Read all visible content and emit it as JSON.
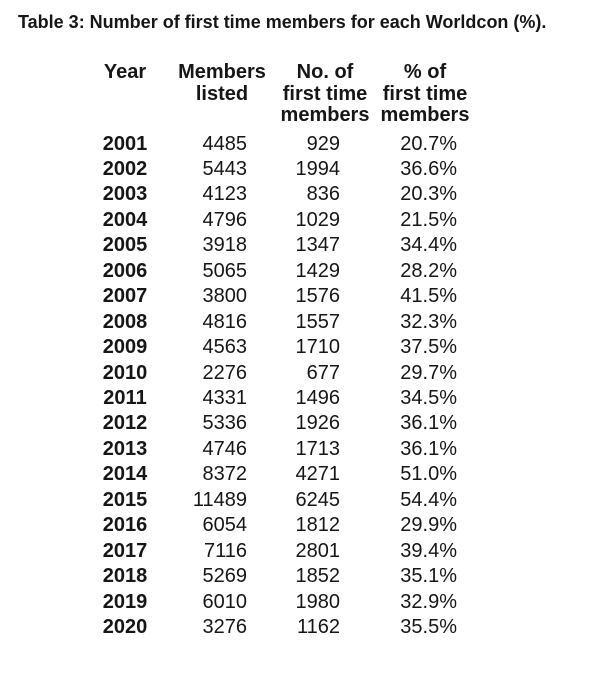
{
  "title": "Table 3: Number of first time members for each Worldcon (%).",
  "colors": {
    "background": "#ffffff",
    "text": "#161616"
  },
  "table": {
    "columns": [
      {
        "key": "year",
        "label": "Year"
      },
      {
        "key": "members_listed",
        "label": "Members\nlisted"
      },
      {
        "key": "first_time_members",
        "label": "No. of\nfirst time\nmembers"
      },
      {
        "key": "first_time_percent",
        "label": "% of\nfirst time\nmembers"
      }
    ],
    "rows": [
      {
        "year": "2001",
        "members_listed": "4485",
        "first_time_members": "929",
        "first_time_percent": "20.7%"
      },
      {
        "year": "2002",
        "members_listed": "5443",
        "first_time_members": "1994",
        "first_time_percent": "36.6%"
      },
      {
        "year": "2003",
        "members_listed": "4123",
        "first_time_members": "836",
        "first_time_percent": "20.3%"
      },
      {
        "year": "2004",
        "members_listed": "4796",
        "first_time_members": "1029",
        "first_time_percent": "21.5%"
      },
      {
        "year": "2005",
        "members_listed": "3918",
        "first_time_members": "1347",
        "first_time_percent": "34.4%"
      },
      {
        "year": "2006",
        "members_listed": "5065",
        "first_time_members": "1429",
        "first_time_percent": "28.2%"
      },
      {
        "year": "2007",
        "members_listed": "3800",
        "first_time_members": "1576",
        "first_time_percent": "41.5%"
      },
      {
        "year": "2008",
        "members_listed": "4816",
        "first_time_members": "1557",
        "first_time_percent": "32.3%"
      },
      {
        "year": "2009",
        "members_listed": "4563",
        "first_time_members": "1710",
        "first_time_percent": "37.5%"
      },
      {
        "year": "2010",
        "members_listed": "2276",
        "first_time_members": "677",
        "first_time_percent": "29.7%"
      },
      {
        "year": "2011",
        "members_listed": "4331",
        "first_time_members": "1496",
        "first_time_percent": "34.5%"
      },
      {
        "year": "2012",
        "members_listed": "5336",
        "first_time_members": "1926",
        "first_time_percent": "36.1%"
      },
      {
        "year": "2013",
        "members_listed": "4746",
        "first_time_members": "1713",
        "first_time_percent": "36.1%"
      },
      {
        "year": "2014",
        "members_listed": "8372",
        "first_time_members": "4271",
        "first_time_percent": "51.0%"
      },
      {
        "year": "2015",
        "members_listed": "11489",
        "first_time_members": "6245",
        "first_time_percent": "54.4%"
      },
      {
        "year": "2016",
        "members_listed": "6054",
        "first_time_members": "1812",
        "first_time_percent": "29.9%"
      },
      {
        "year": "2017",
        "members_listed": "7116",
        "first_time_members": "2801",
        "first_time_percent": "39.4%"
      },
      {
        "year": "2018",
        "members_listed": "5269",
        "first_time_members": "1852",
        "first_time_percent": "35.1%"
      },
      {
        "year": "2019",
        "members_listed": "6010",
        "first_time_members": "1980",
        "first_time_percent": "32.9%"
      },
      {
        "year": "2020",
        "members_listed": "3276",
        "first_time_members": "1162",
        "first_time_percent": "35.5%"
      }
    ]
  },
  "chart_data": {
    "type": "table",
    "title": "Table 3: Number of first time members for each Worldcon (%).",
    "categories": [
      "2001",
      "2002",
      "2003",
      "2004",
      "2005",
      "2006",
      "2007",
      "2008",
      "2009",
      "2010",
      "2011",
      "2012",
      "2013",
      "2014",
      "2015",
      "2016",
      "2017",
      "2018",
      "2019",
      "2020"
    ],
    "series": [
      {
        "name": "Members listed",
        "values": [
          4485,
          5443,
          4123,
          4796,
          3918,
          5065,
          3800,
          4816,
          4563,
          2276,
          4331,
          5336,
          4746,
          8372,
          11489,
          6054,
          7116,
          5269,
          6010,
          3276
        ]
      },
      {
        "name": "No. of first time members",
        "values": [
          929,
          1994,
          836,
          1029,
          1347,
          1429,
          1576,
          1557,
          1710,
          677,
          1496,
          1926,
          1713,
          4271,
          6245,
          1812,
          2801,
          1852,
          1980,
          1162
        ]
      },
      {
        "name": "% of first time members",
        "values": [
          20.7,
          36.6,
          20.3,
          21.5,
          34.4,
          28.2,
          41.5,
          32.3,
          37.5,
          29.7,
          34.5,
          36.1,
          36.1,
          51.0,
          54.4,
          29.9,
          39.4,
          35.1,
          32.9,
          35.5
        ]
      }
    ]
  }
}
